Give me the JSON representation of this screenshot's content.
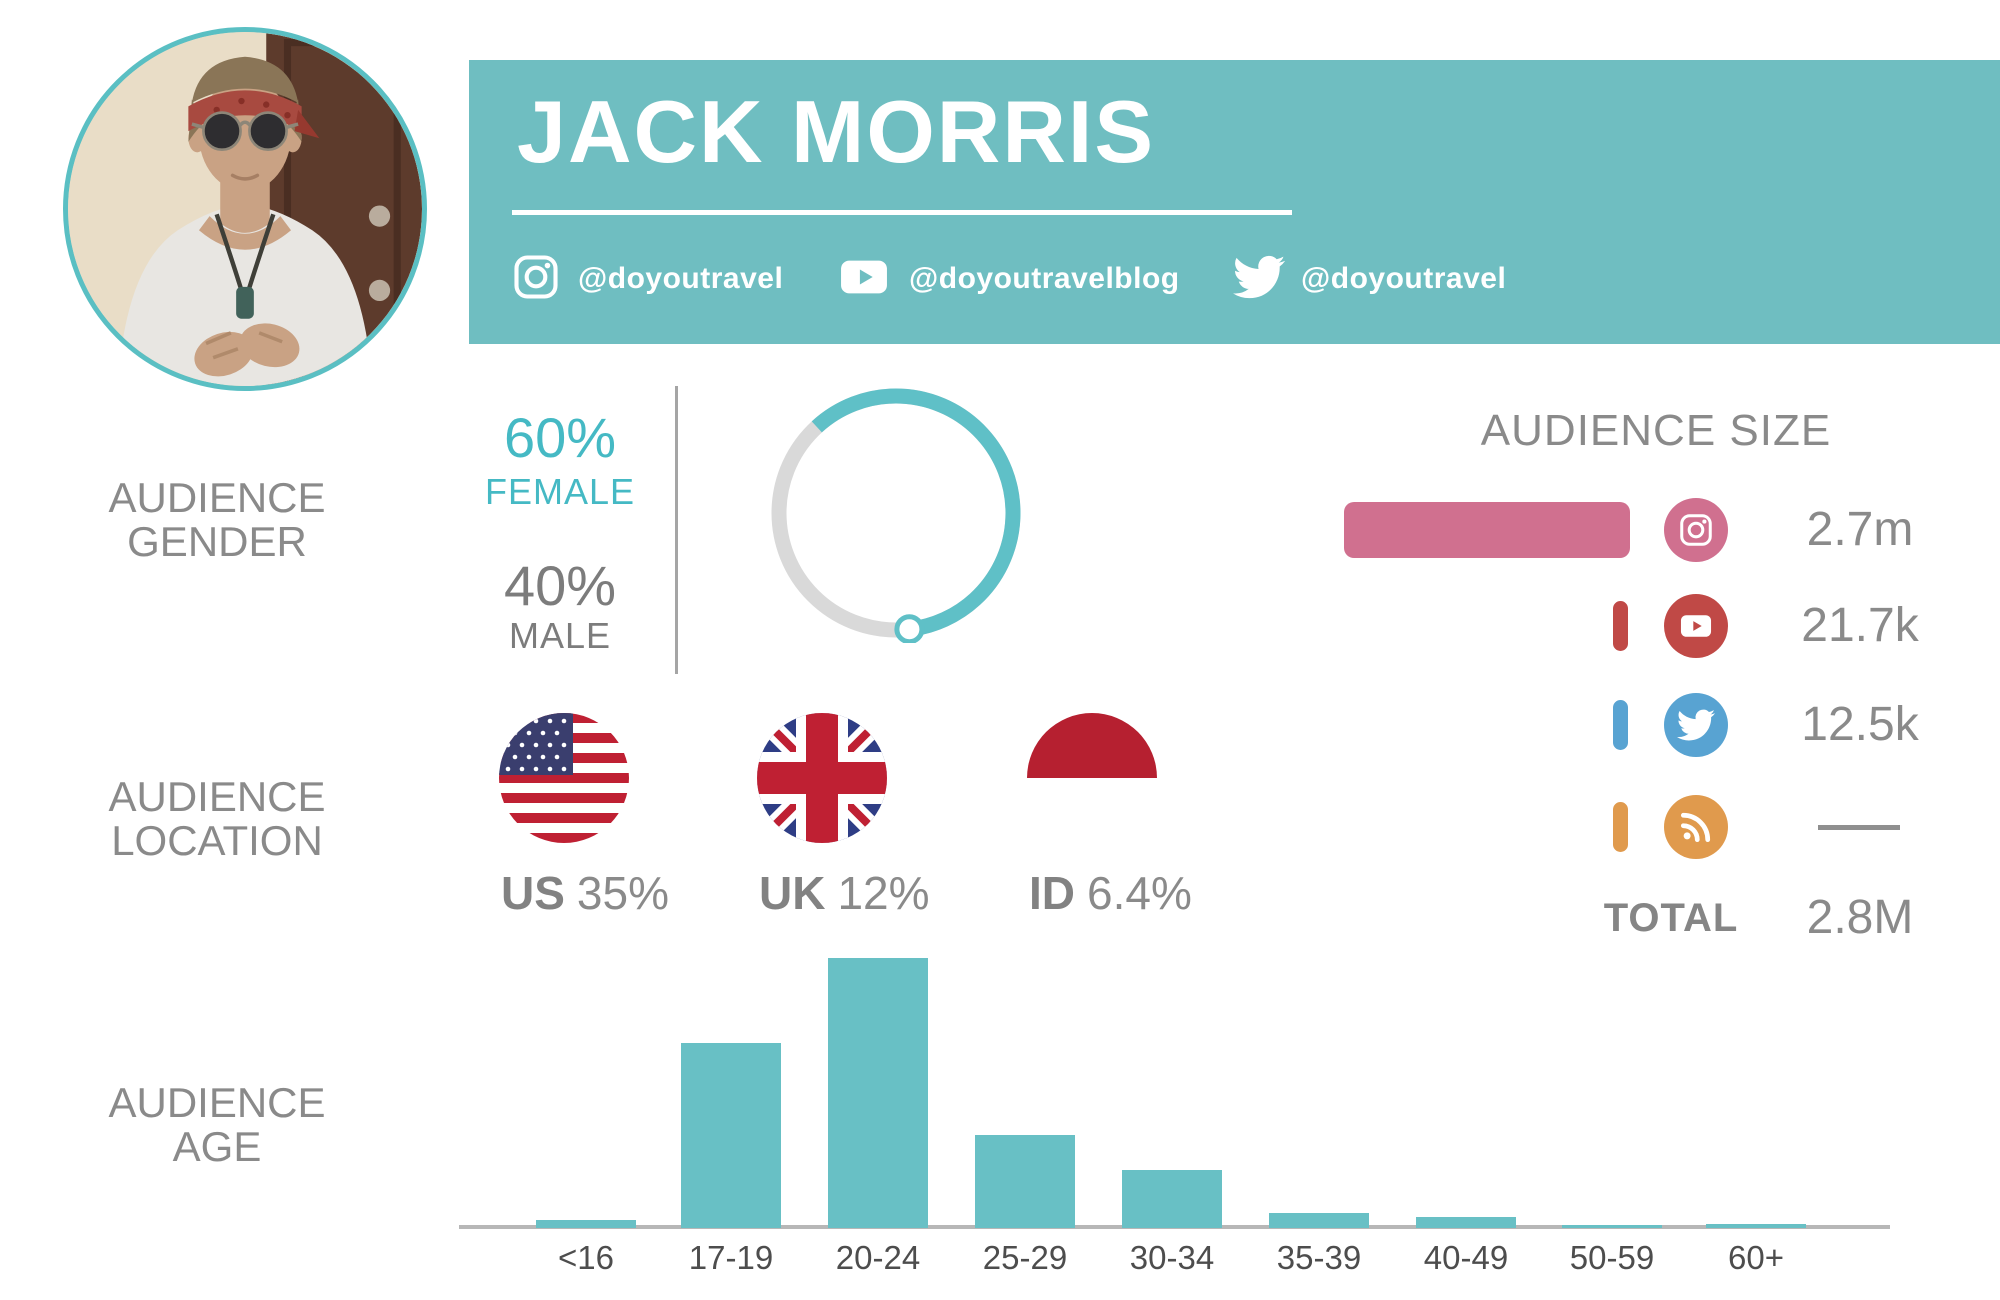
{
  "profile": {
    "name": "JACK MORRIS"
  },
  "socials": [
    {
      "platform": "instagram",
      "handle": "@doyoutravel"
    },
    {
      "platform": "youtube",
      "handle": "@doyoutravelblog"
    },
    {
      "platform": "twitter",
      "handle": "@doyoutravel"
    }
  ],
  "sections": {
    "gender": {
      "label_line1": "AUDIENCE",
      "label_line2": "GENDER",
      "female_pct": "60%",
      "female_label": "FEMALE",
      "male_pct": "40%",
      "male_label": "MALE"
    },
    "location": {
      "label_line1": "AUDIENCE",
      "label_line2": "LOCATION",
      "countries": [
        {
          "code": "US",
          "pct": "35%"
        },
        {
          "code": "UK",
          "pct": "12%"
        },
        {
          "code": "ID",
          "pct": "6.4%"
        }
      ]
    },
    "age": {
      "label_line1": "AUDIENCE",
      "label_line2": "AGE"
    },
    "audience_size": {
      "title": "AUDIENCE SIZE",
      "rows": [
        {
          "platform": "instagram",
          "value": "2.7m",
          "value_is_dash": false
        },
        {
          "platform": "youtube",
          "value": "21.7k",
          "value_is_dash": false
        },
        {
          "platform": "twitter",
          "value": "12.5k",
          "value_is_dash": false
        },
        {
          "platform": "blog-rss",
          "value": "—",
          "value_is_dash": true
        }
      ],
      "total_label": "TOTAL",
      "total_value": "2.8M"
    }
  },
  "colors": {
    "band_teal": "#6fbec1",
    "bar_teal": "#68c0c5",
    "donut_teal": "#5fc0c7",
    "donut_track": "#d9d9d9",
    "accent_teal_text": "#45b9c4",
    "gray_text": "#8a8a8a",
    "male_gray": "#7c7c7c",
    "instagram_pink": "#d0708f",
    "youtube_red": "#c04946",
    "twitter_blue": "#58a3d2",
    "rss_orange": "#e09a4d"
  },
  "chart_data": [
    {
      "type": "pie",
      "title": "Audience gender",
      "style": "donut ring with end handle",
      "slices": [
        {
          "label": "Female",
          "value": 60,
          "color": "#5fc0c7"
        },
        {
          "label": "Male",
          "value": 40,
          "color": "#d9d9d9"
        }
      ]
    },
    {
      "type": "bar",
      "title": "Audience size",
      "orientation": "horizontal",
      "categories": [
        "Instagram",
        "YouTube",
        "Twitter",
        "Blog/RSS"
      ],
      "values": [
        2700000,
        21700,
        12500,
        null
      ],
      "value_labels": [
        "2.7m",
        "21.7k",
        "12.5k",
        "—"
      ],
      "total": {
        "label": "TOTAL",
        "value": "2.8M"
      },
      "colors": [
        "#d0708f",
        "#c04946",
        "#58a3d2",
        "#e09a4d"
      ]
    },
    {
      "type": "bar",
      "title": "Audience age",
      "categories": [
        "<16",
        "17-19",
        "20-24",
        "25-29",
        "30-34",
        "35-39",
        "40-49",
        "50-59",
        "60+"
      ],
      "values": [
        3,
        68.5,
        100,
        34.5,
        21.5,
        5.5,
        4,
        1.2,
        1.5
      ],
      "unit": "relative bar height, max = 100 (no value labels shown in figure)",
      "xlabel": "age group",
      "ylabel": "",
      "grid": false,
      "bar_color": "#68c0c5"
    },
    {
      "type": "bar",
      "title": "Audience location",
      "categories": [
        "US",
        "UK",
        "ID"
      ],
      "values": [
        35,
        12,
        6.4
      ],
      "unit": "%"
    }
  ]
}
